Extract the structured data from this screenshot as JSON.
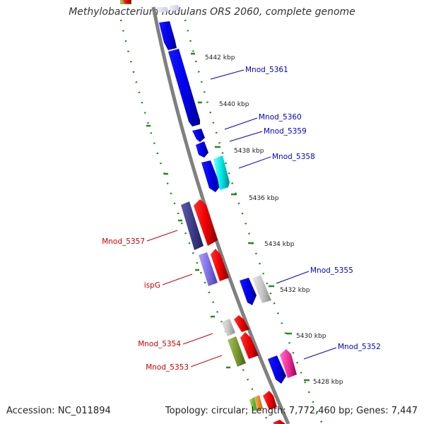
{
  "title": "Methylobacterium nodulans ORS 2060, complete genome",
  "accession": "Accession: NC_011894",
  "summary": "Topology: circular; Length: 7,772,460 bp; Genes: 7,447",
  "ticks": [
    "5442 kbp",
    "5440 kbp",
    "5438 kbp",
    "5436 kbp",
    "5434 kbp",
    "5432 kbp",
    "5430 kbp",
    "5428 kbp"
  ],
  "genes_right": [
    "Mnod_5361",
    "Mnod_5360",
    "Mnod_5359",
    "Mnod_5358",
    "Mnod_5355",
    "Mnod_5352"
  ],
  "genes_left": [
    "Mnod_5357",
    "ispG",
    "Mnod_5354",
    "Mnod_5353"
  ],
  "colors": {
    "backbone": "#808080",
    "tick_dots": "#228B22",
    "label_right": "#0000C8",
    "label_left": "#CC0000"
  }
}
